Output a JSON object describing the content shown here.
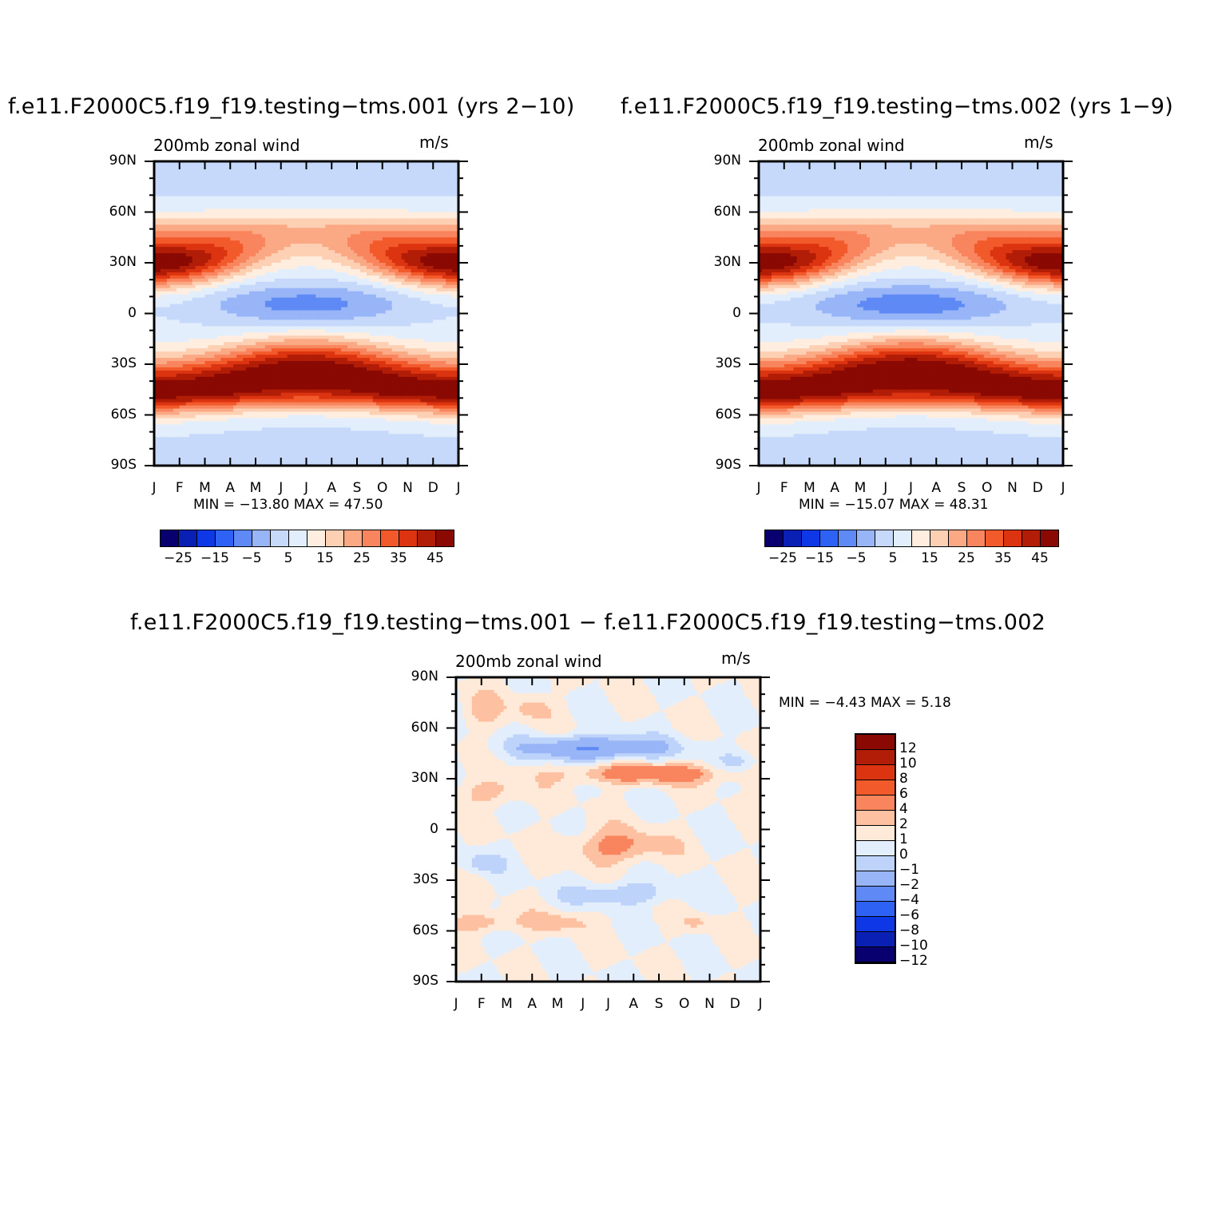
{
  "titles": {
    "left": "f.e11.F2000C5.f19_f19.testing−tms.001 (yrs 2−10)",
    "right": "f.e11.F2000C5.f19_f19.testing−tms.002 (yrs 1−9)",
    "bottom": "f.e11.F2000C5.f19_f19.testing−tms.001 − f.e11.F2000C5.f19_f19.testing−tms.002"
  },
  "common": {
    "field_label": "200mb zonal wind",
    "units": "m/s",
    "ylabels": [
      "90N",
      "60N",
      "30N",
      "0",
      "30S",
      "60S",
      "90S"
    ],
    "xlabels": [
      "J",
      "F",
      "M",
      "A",
      "M",
      "J",
      "J",
      "A",
      "S",
      "O",
      "N",
      "D",
      "J"
    ]
  },
  "stats": {
    "left": "MIN =  −13.80  MAX =    47.50",
    "right": "MIN =  −15.07  MAX =    48.31",
    "bottom": "MIN =    −4.43  MAX =     5.18"
  },
  "colors": {
    "mean_palette": [
      "#08006e",
      "#0a1fb4",
      "#0e37e6",
      "#2d62f5",
      "#5f8af5",
      "#98b5f7",
      "#c6d9fb",
      "#e3eefc",
      "#ffeedf",
      "#fdd0b4",
      "#fba985",
      "#f8855e",
      "#f25a2c",
      "#dc3410",
      "#b11d07",
      "#8a0903"
    ],
    "diff_palette": [
      "#8a0903",
      "#b11d07",
      "#dc3410",
      "#f25a2c",
      "#f8855e",
      "#fdc0a0",
      "#ffe9d8",
      "#e3eefc",
      "#bdd3fa",
      "#98b5f7",
      "#5f8af5",
      "#2d62f5",
      "#0e37e6",
      "#0a1fb4",
      "#08006e"
    ]
  },
  "colorbar_mean": {
    "labels": [
      "−25",
      "−15",
      "−5",
      "5",
      "15",
      "25",
      "35",
      "45"
    ]
  },
  "colorbar_diff": {
    "labels": [
      "12",
      "10",
      "8",
      "6",
      "4",
      "2",
      "1",
      "0",
      "−1",
      "−2",
      "−4",
      "−6",
      "−8",
      "−10",
      "−12"
    ]
  },
  "chart_data": [
    {
      "type": "heatmap",
      "title": "f.e11.F2000C5.f19_f19.testing−tms.001 (yrs 2−10)",
      "subtitle": "200mb zonal wind",
      "units": "m/s",
      "x": [
        "J",
        "F",
        "M",
        "A",
        "M",
        "J",
        "J",
        "A",
        "S",
        "O",
        "N",
        "D",
        "J"
      ],
      "y": [
        "90N",
        "60N",
        "30N",
        "0",
        "30S",
        "60S",
        "90S"
      ],
      "levels": [
        -30,
        -25,
        -20,
        -15,
        -10,
        -5,
        0,
        5,
        10,
        15,
        20,
        25,
        30,
        35,
        40,
        45,
        50
      ],
      "min": -13.8,
      "max": 47.5,
      "features": {
        "nh_jet_core": {
          "lat": 30,
          "month_ranges": [
            [
              0,
              2
            ],
            [
              10,
              12
            ]
          ],
          "value": 45
        },
        "equatorial_easterly": {
          "lat": 5,
          "months": [
            5,
            8
          ],
          "value": -13
        },
        "sh_jet_core": {
          "lat": -30,
          "months": [
            5,
            7
          ],
          "value": 47
        }
      }
    },
    {
      "type": "heatmap",
      "title": "f.e11.F2000C5.f19_f19.testing−tms.002 (yrs 1−9)",
      "subtitle": "200mb zonal wind",
      "units": "m/s",
      "x": [
        "J",
        "F",
        "M",
        "A",
        "M",
        "J",
        "J",
        "A",
        "S",
        "O",
        "N",
        "D",
        "J"
      ],
      "y": [
        "90N",
        "60N",
        "30N",
        "0",
        "30S",
        "60S",
        "90S"
      ],
      "levels": [
        -30,
        -25,
        -20,
        -15,
        -10,
        -5,
        0,
        5,
        10,
        15,
        20,
        25,
        30,
        35,
        40,
        45,
        50
      ],
      "min": -15.07,
      "max": 48.31,
      "features": {
        "nh_jet_core": {
          "lat": 30,
          "month_ranges": [
            [
              0,
              2
            ],
            [
              10,
              12
            ]
          ],
          "value": 45
        },
        "equatorial_easterly": {
          "lat": 5,
          "months": [
            5,
            8
          ],
          "value": -14
        },
        "sh_jet_core": {
          "lat": -30,
          "months": [
            5,
            7
          ],
          "value": 48
        }
      }
    },
    {
      "type": "heatmap",
      "title": "f.e11.F2000C5.f19_f19.testing−tms.001 − f.e11.F2000C5.f19_f19.testing−tms.002",
      "subtitle": "200mb zonal wind",
      "units": "m/s",
      "x": [
        "J",
        "F",
        "M",
        "A",
        "M",
        "J",
        "J",
        "A",
        "S",
        "O",
        "N",
        "D",
        "J"
      ],
      "y": [
        "90N",
        "60N",
        "30N",
        "0",
        "30S",
        "60S",
        "90S"
      ],
      "levels": [
        -12,
        -10,
        -8,
        -6,
        -4,
        -2,
        -1,
        0,
        1,
        2,
        4,
        6,
        8,
        10,
        12
      ],
      "min": -4.43,
      "max": 5.18,
      "features": {
        "nh_negative_band": {
          "lat": 48,
          "months": [
            2,
            9
          ],
          "value": -4
        },
        "nh_positive_band": {
          "lat": 30,
          "months": [
            2,
            11
          ],
          "value": 3
        },
        "tropical_positive": {
          "lat": -10,
          "months": [
            5,
            8
          ],
          "value": 2.5
        },
        "sh_negative": {
          "lat": -40,
          "months": [
            4,
            8
          ],
          "value": -2
        }
      }
    }
  ]
}
